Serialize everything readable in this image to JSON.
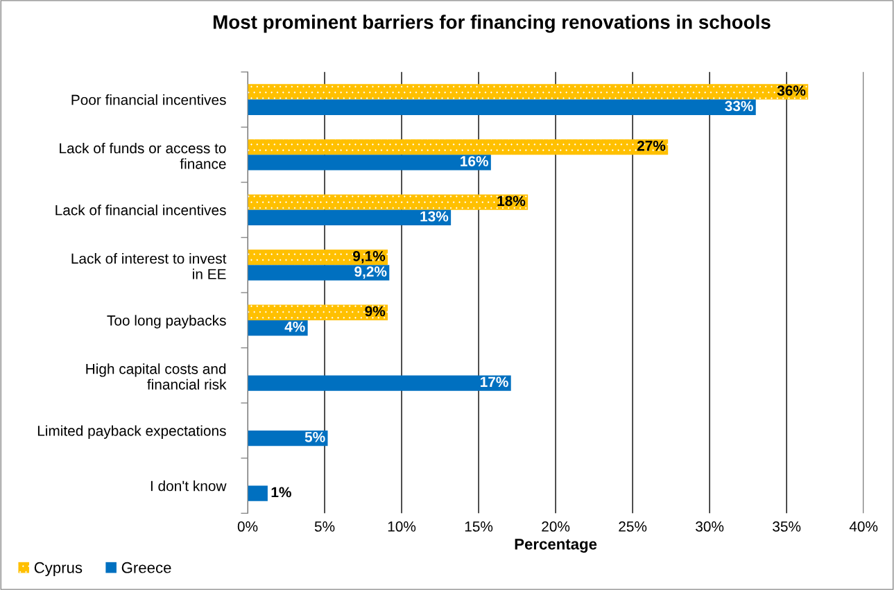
{
  "chart_data": {
    "type": "bar",
    "orientation": "horizontal",
    "title": "Most prominent barriers for financing renovations in schools",
    "xlabel": "Percentage",
    "categories": [
      "Poor financial incentives",
      "Lack of funds or access to finance",
      "Lack of financial incentives",
      "Lack of interest to invest in EE",
      "Too long paybacks",
      "High capital costs and financial risk",
      "Limited payback expectations",
      "I don't know"
    ],
    "series": [
      {
        "name": "Cyprus",
        "color": "#ffc000",
        "values": [
          36.4,
          27.3,
          18.2,
          9.1,
          9.1,
          null,
          null,
          null
        ],
        "value_labels": [
          "36%",
          "27%",
          "18%",
          "9,1%",
          "9%",
          null,
          null,
          null
        ]
      },
      {
        "name": "Greece",
        "color": "#0070c0",
        "values": [
          33.0,
          15.8,
          13.2,
          9.2,
          3.9,
          17.1,
          5.2,
          1.3
        ],
        "value_labels": [
          "33%",
          "16%",
          "13%",
          "9,2%",
          "4%",
          "17%",
          "5%",
          "1%"
        ]
      }
    ],
    "xlim": [
      0,
      40
    ],
    "xticks": [
      {
        "value": 0,
        "label": "0%"
      },
      {
        "value": 5,
        "label": "5%"
      },
      {
        "value": 10,
        "label": "10%"
      },
      {
        "value": 15,
        "label": "15%"
      },
      {
        "value": 20,
        "label": "20%"
      },
      {
        "value": 25,
        "label": "25%"
      },
      {
        "value": 30,
        "label": "30%"
      },
      {
        "value": 35,
        "label": "35%"
      },
      {
        "value": 40,
        "label": "40%"
      }
    ],
    "grid": "x",
    "legend": "bottom left"
  }
}
